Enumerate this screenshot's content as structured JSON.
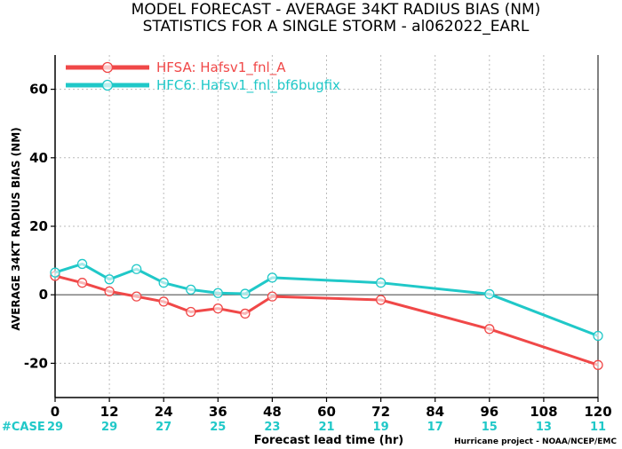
{
  "chart_data": {
    "type": "line",
    "title": "MODEL FORECAST - AVERAGE 34KT RADIUS BIAS (NM)",
    "subtitle": "STATISTICS FOR A SINGLE STORM - al062022_EARL",
    "xlabel": "Forecast lead time (hr)",
    "ylabel": "AVERAGE 34KT RADIUS BIAS (NM)",
    "xlim": [
      0,
      120
    ],
    "ylim": [
      -30,
      70
    ],
    "xticks": [
      0,
      12,
      24,
      36,
      48,
      60,
      72,
      84,
      96,
      108,
      120
    ],
    "yticks": [
      -20,
      0,
      20,
      40,
      60
    ],
    "grid": true,
    "legend_position": "top-left",
    "series": [
      {
        "name": "HFSA: Hafsv1_fnl_A",
        "color": "#f04848",
        "x": [
          0,
          6,
          12,
          18,
          24,
          30,
          36,
          42,
          48,
          72,
          96,
          120
        ],
        "y": [
          5.5,
          3.5,
          1,
          -0.5,
          -2,
          -5,
          -4,
          -5.5,
          -0.5,
          -1.5,
          -10,
          -20.5
        ]
      },
      {
        "name": "HFC6: Hafsv1_fnl_bf6bugfix",
        "color": "#20c8c8",
        "x": [
          0,
          6,
          12,
          18,
          24,
          30,
          36,
          42,
          48,
          72,
          96,
          120
        ],
        "y": [
          6.5,
          9,
          4.5,
          7.5,
          3.5,
          1.5,
          0.5,
          0.3,
          5,
          3.5,
          0.2,
          -12
        ]
      }
    ],
    "case_label": "#CASE",
    "case_counts": [
      {
        "x": 0,
        "value": "29"
      },
      {
        "x": 12,
        "value": "29"
      },
      {
        "x": 24,
        "value": "27"
      },
      {
        "x": 36,
        "value": "25"
      },
      {
        "x": 48,
        "value": "23"
      },
      {
        "x": 60,
        "value": "21"
      },
      {
        "x": 72,
        "value": "19"
      },
      {
        "x": 84,
        "value": "17"
      },
      {
        "x": 96,
        "value": "15"
      },
      {
        "x": 108,
        "value": "13"
      },
      {
        "x": 120,
        "value": "11"
      }
    ],
    "credit": "Hurricane project - NOAA/NCEP/EMC",
    "colors": {
      "case_label": "#20c8c8",
      "zero_line": "#555555",
      "grid": "#bbbbbb"
    }
  }
}
